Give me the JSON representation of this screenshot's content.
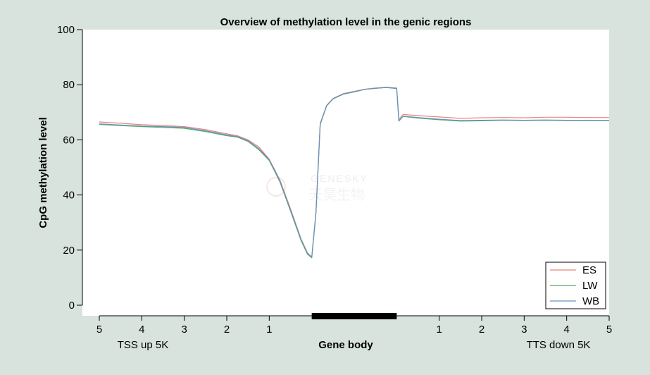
{
  "colors": {
    "background": "#d7e3dc",
    "plot_background": "#ffffff",
    "ES": "#e8847c",
    "LW": "#4fae5f",
    "WB": "#6b8fc2",
    "gene_body_bar": "#000000"
  },
  "watermark": {
    "text_en": "GENESKY",
    "text_cn": "天昊生物"
  },
  "chart_data": {
    "type": "line",
    "title": "Overview of methylation level in the genic regions",
    "ylabel": "CpG methylation level",
    "xlabel": "",
    "ylim": [
      0,
      100
    ],
    "yticks": [
      0,
      20,
      40,
      60,
      80,
      100
    ],
    "xlim": [
      0,
      12
    ],
    "x_tick_positions": [
      0,
      1,
      2,
      3,
      4,
      8,
      9,
      10,
      11,
      12
    ],
    "x_tick_labels": [
      "5",
      "4",
      "3",
      "2",
      "1",
      "1",
      "2",
      "3",
      "4",
      "5"
    ],
    "region_labels": [
      "TSS up 5K",
      "Gene body",
      "TTS down 5K"
    ],
    "gene_body_range": [
      5,
      7
    ],
    "grid": false,
    "legend_position": "bottom-right",
    "series": [
      {
        "name": "ES",
        "x": [
          0,
          0.5,
          1,
          1.5,
          2,
          2.5,
          3,
          3.25,
          3.5,
          3.75,
          4,
          4.25,
          4.5,
          4.75,
          4.9,
          5,
          5.1,
          5.2,
          5.35,
          5.5,
          5.75,
          6,
          6.25,
          6.5,
          6.75,
          7,
          7.05,
          7.15,
          7.5,
          8,
          8.5,
          9,
          9.5,
          10,
          10.5,
          11,
          11.5,
          12
        ],
        "y": [
          66.5,
          66,
          65.5,
          65.2,
          64.8,
          63.7,
          62.2,
          61.5,
          60,
          57.5,
          53,
          45.5,
          35,
          24,
          19,
          17.5,
          34,
          66,
          72.5,
          75,
          76.8,
          77.6,
          78.4,
          78.8,
          79.1,
          78.8,
          67.5,
          69.2,
          68.8,
          68.3,
          67.8,
          68,
          68.1,
          68,
          68.2,
          68.2,
          68.1,
          68.1
        ]
      },
      {
        "name": "LW",
        "x": [
          0,
          0.5,
          1,
          1.5,
          2,
          2.5,
          3,
          3.25,
          3.5,
          3.75,
          4,
          4.25,
          4.5,
          4.75,
          4.9,
          5,
          5.1,
          5.2,
          5.35,
          5.5,
          5.75,
          6,
          6.25,
          6.5,
          6.75,
          7,
          7.05,
          7.15,
          7.5,
          8,
          8.5,
          9,
          9.5,
          10,
          10.5,
          11,
          11.5,
          12
        ],
        "y": [
          65.6,
          65.2,
          64.8,
          64.5,
          64.2,
          63,
          61.5,
          61,
          59.4,
          56.5,
          52.5,
          44.8,
          34.2,
          23.4,
          18.5,
          17.2,
          33.5,
          65.6,
          72.3,
          74.8,
          76.6,
          77.4,
          78.3,
          78.7,
          79,
          78.6,
          66.8,
          68.5,
          67.9,
          67.3,
          66.8,
          66.9,
          67.1,
          67,
          67.1,
          67,
          67,
          67
        ]
      },
      {
        "name": "WB",
        "x": [
          0,
          0.5,
          1,
          1.5,
          2,
          2.5,
          3,
          3.25,
          3.5,
          3.75,
          4,
          4.25,
          4.5,
          4.75,
          4.9,
          5,
          5.1,
          5.2,
          5.35,
          5.5,
          5.75,
          6,
          6.25,
          6.5,
          6.75,
          7,
          7.05,
          7.15,
          7.5,
          8,
          8.5,
          9,
          9.5,
          10,
          10.5,
          11,
          11.5,
          12
        ],
        "y": [
          65.8,
          65.4,
          65,
          64.8,
          64.5,
          63.3,
          61.8,
          61.2,
          59.7,
          56.9,
          52.8,
          45.2,
          34.6,
          23.8,
          18.8,
          17.4,
          33.8,
          65.8,
          72.4,
          74.9,
          76.7,
          77.5,
          78.3,
          78.7,
          79,
          78.7,
          67,
          68.6,
          68.1,
          67.5,
          67,
          67.1,
          67.2,
          67.1,
          67.2,
          67.1,
          67.1,
          67.1
        ]
      }
    ]
  }
}
